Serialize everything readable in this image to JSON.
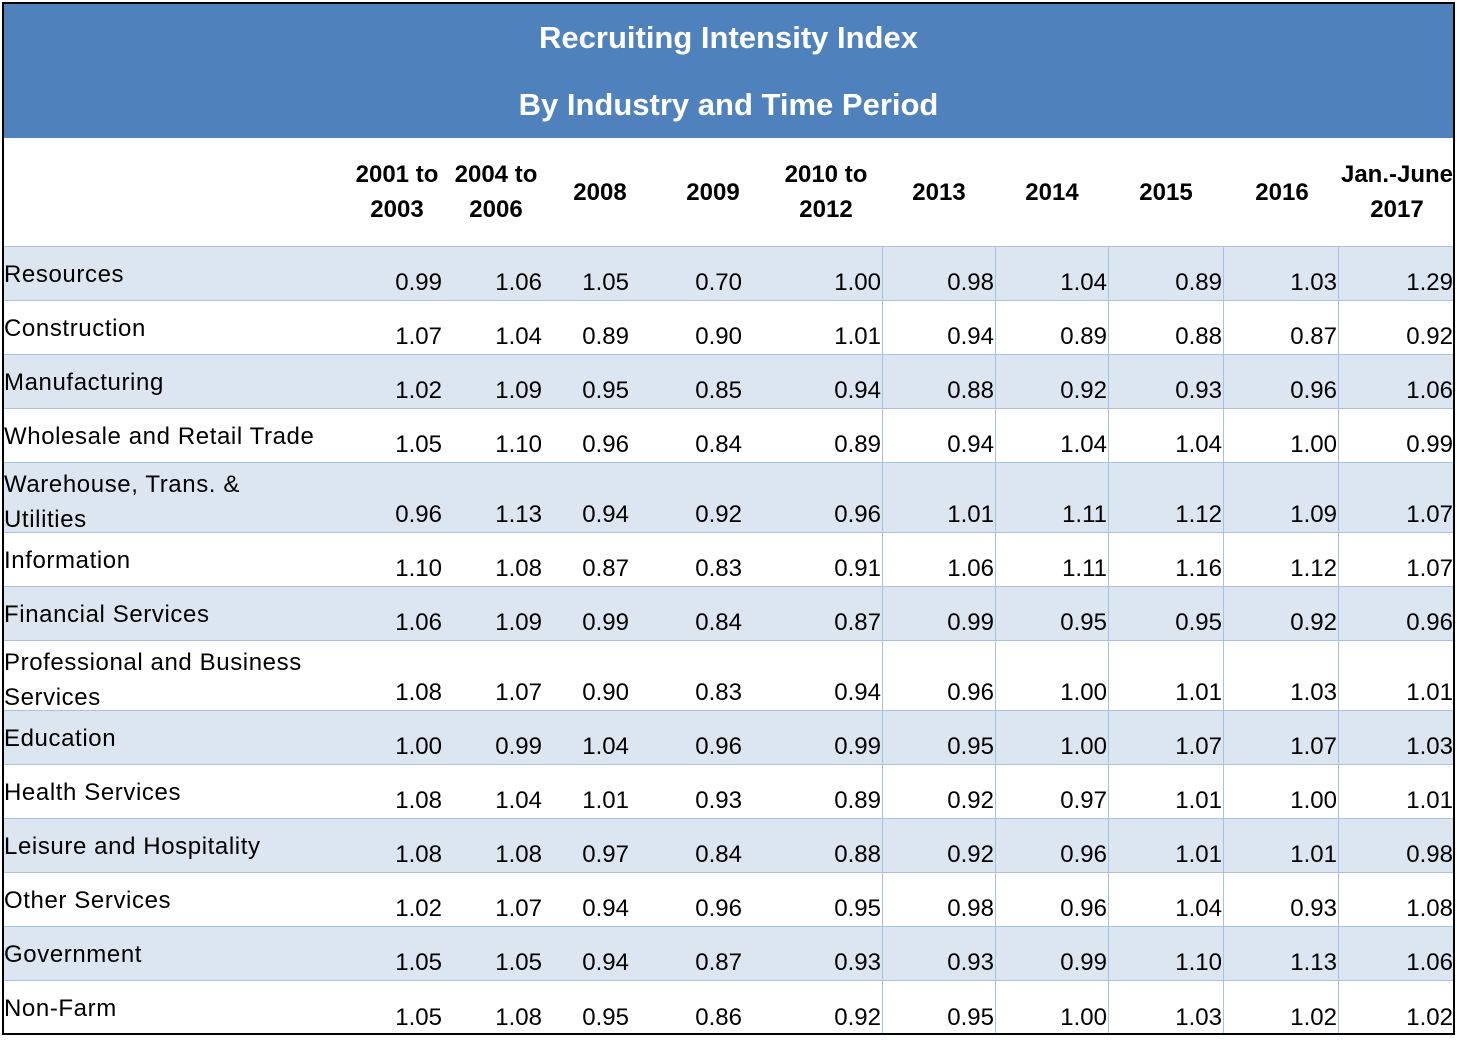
{
  "chart_data": {
    "type": "table",
    "title": "Recruiting Intensity Index",
    "subtitle": "By Industry and Time Period",
    "columns": [
      "2001 to\n2003",
      "2004 to\n2006",
      "2008",
      "2009",
      "2010 to\n2012",
      "2013",
      "2014",
      "2015",
      "2016",
      "Jan.-June\n2017"
    ],
    "rows": [
      {
        "label": "Resources",
        "values": [
          "0.99",
          "1.06",
          "1.05",
          "0.70",
          "1.00",
          "0.98",
          "1.04",
          "0.89",
          "1.03",
          "1.29"
        ]
      },
      {
        "label": "Construction",
        "values": [
          "1.07",
          "1.04",
          "0.89",
          "0.90",
          "1.01",
          "0.94",
          "0.89",
          "0.88",
          "0.87",
          "0.92"
        ]
      },
      {
        "label": "Manufacturing",
        "values": [
          "1.02",
          "1.09",
          "0.95",
          "0.85",
          "0.94",
          "0.88",
          "0.92",
          "0.93",
          "0.96",
          "1.06"
        ]
      },
      {
        "label": "Wholesale and Retail Trade",
        "values": [
          "1.05",
          "1.10",
          "0.96",
          "0.84",
          "0.89",
          "0.94",
          "1.04",
          "1.04",
          "1.00",
          "0.99"
        ]
      },
      {
        "label": "Warehouse, Trans. &\nUtilities",
        "values": [
          "0.96",
          "1.13",
          "0.94",
          "0.92",
          "0.96",
          "1.01",
          "1.11",
          "1.12",
          "1.09",
          "1.07"
        ]
      },
      {
        "label": "Information",
        "values": [
          "1.10",
          "1.08",
          "0.87",
          "0.83",
          "0.91",
          "1.06",
          "1.11",
          "1.16",
          "1.12",
          "1.07"
        ]
      },
      {
        "label": "Financial Services",
        "values": [
          "1.06",
          "1.09",
          "0.99",
          "0.84",
          "0.87",
          "0.99",
          "0.95",
          "0.95",
          "0.92",
          "0.96"
        ]
      },
      {
        "label": "Professional and Business\nServices",
        "values": [
          "1.08",
          "1.07",
          "0.90",
          "0.83",
          "0.94",
          "0.96",
          "1.00",
          "1.01",
          "1.03",
          "1.01"
        ]
      },
      {
        "label": "Education",
        "values": [
          "1.00",
          "0.99",
          "1.04",
          "0.96",
          "0.99",
          "0.95",
          "1.00",
          "1.07",
          "1.07",
          "1.03"
        ]
      },
      {
        "label": "Health Services",
        "values": [
          "1.08",
          "1.04",
          "1.01",
          "0.93",
          "0.89",
          "0.92",
          "0.97",
          "1.01",
          "1.00",
          "1.01"
        ]
      },
      {
        "label": "Leisure and Hospitality",
        "values": [
          "1.08",
          "1.08",
          "0.97",
          "0.84",
          "0.88",
          "0.92",
          "0.96",
          "1.01",
          "1.01",
          "0.98"
        ]
      },
      {
        "label": "Other Services",
        "values": [
          "1.02",
          "1.07",
          "0.94",
          "0.96",
          "0.95",
          "0.98",
          "0.96",
          "1.04",
          "0.93",
          "1.08"
        ]
      },
      {
        "label": "Government",
        "values": [
          "1.05",
          "1.05",
          "0.94",
          "0.87",
          "0.93",
          "0.93",
          "0.99",
          "1.10",
          "1.13",
          "1.06"
        ]
      },
      {
        "label": "Non-Farm",
        "values": [
          "1.05",
          "1.08",
          "0.95",
          "0.86",
          "0.92",
          "0.95",
          "1.00",
          "1.03",
          "1.02",
          "1.02"
        ]
      }
    ]
  },
  "colors": {
    "header_bg": "#4f81bd",
    "header_text": "#ffffff",
    "row_shade": "#dce6f1",
    "grid_line": "#a9c1e0"
  }
}
